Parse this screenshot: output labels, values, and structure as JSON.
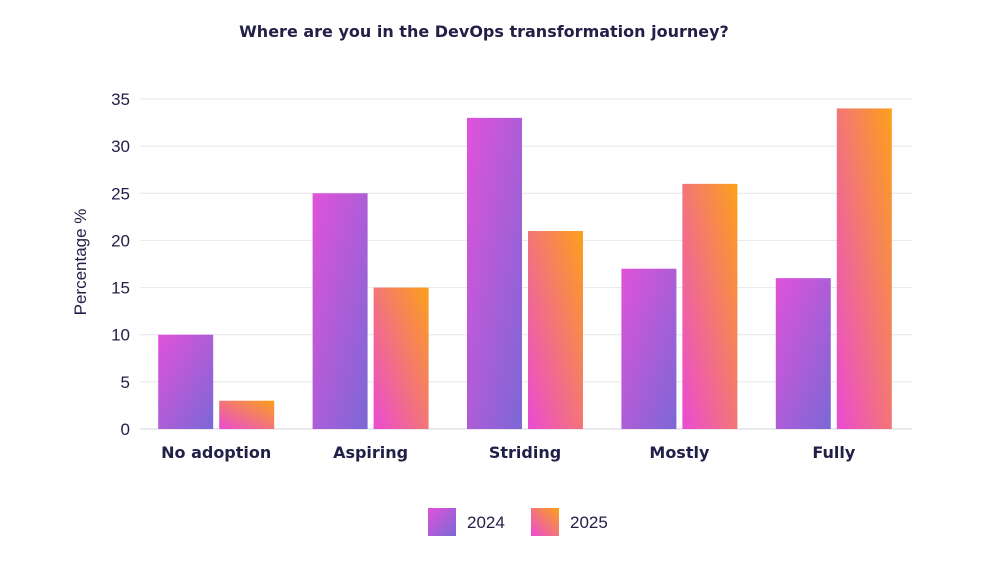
{
  "chart_data": {
    "type": "bar",
    "title": "Where are you in the DevOps transformation journey?",
    "ylabel": "Percentage %",
    "xlabel": "",
    "ylim": [
      0,
      35
    ],
    "yticks": [
      0,
      5,
      10,
      15,
      20,
      25,
      30,
      35
    ],
    "grid": true,
    "legend_position": "bottom-center",
    "categories": [
      "No adoption",
      "Aspiring",
      "Striding",
      "Mostly",
      "Fully"
    ],
    "series": [
      {
        "name": "2024",
        "values": [
          10,
          25,
          33,
          17,
          16
        ],
        "gradient_top": "#e052d9",
        "gradient_bottom": "#7b68d6"
      },
      {
        "name": "2025",
        "values": [
          3,
          15,
          21,
          26,
          34
        ],
        "gradient_top": "#fca01a",
        "gradient_bottom": "#ea4bd4"
      }
    ]
  }
}
